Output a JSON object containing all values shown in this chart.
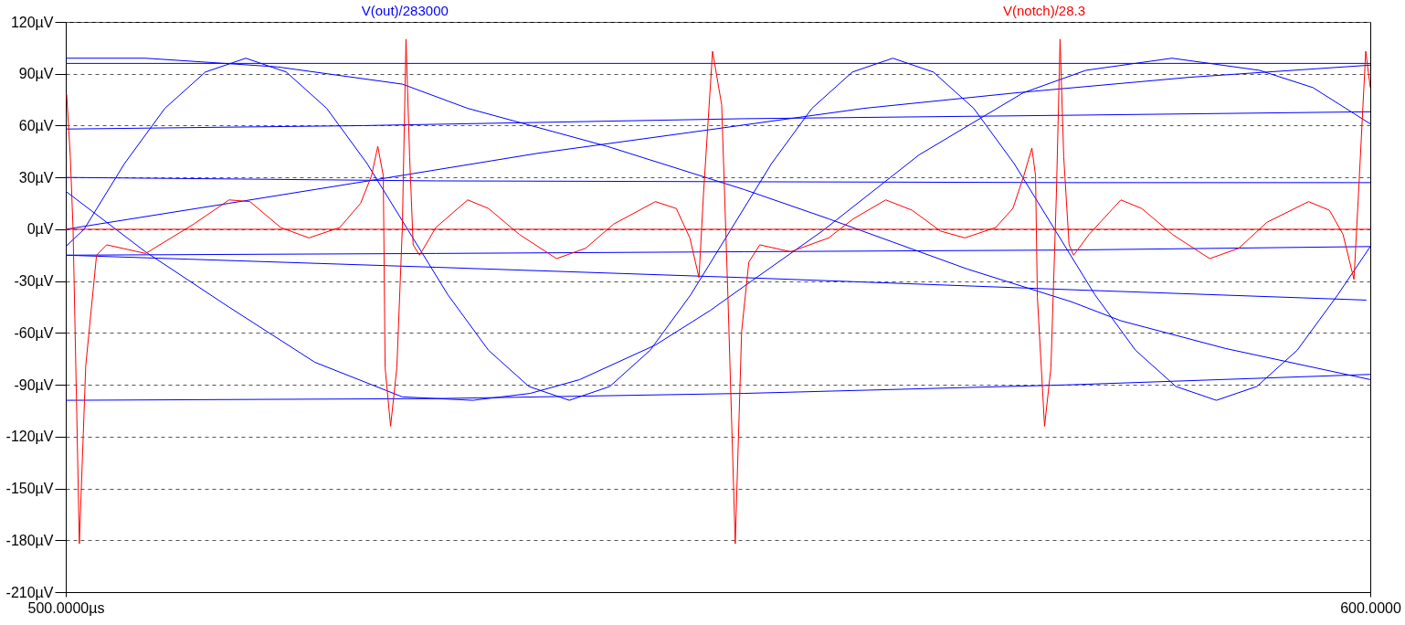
{
  "chart_data": {
    "type": "line",
    "xlim": [
      500,
      600
    ],
    "xticks": [
      {
        "value": 500,
        "label": "500.0000µs"
      },
      {
        "value": 600,
        "label": "600.0000"
      }
    ],
    "ylim": [
      -210,
      120
    ],
    "yticks": [
      {
        "value": -210,
        "label": "-210µV"
      },
      {
        "value": -180,
        "label": "-180µV"
      },
      {
        "value": -150,
        "label": "-150µV"
      },
      {
        "value": -120,
        "label": "-120µV"
      },
      {
        "value": -90,
        "label": "-90µV"
      },
      {
        "value": -60,
        "label": "-60µV"
      },
      {
        "value": -30,
        "label": "-30µV"
      },
      {
        "value": 0,
        "label": "0µV"
      },
      {
        "value": 30,
        "label": "30µV"
      },
      {
        "value": 60,
        "label": "60µV"
      },
      {
        "value": 90,
        "label": "90µV"
      },
      {
        "value": 120,
        "label": "120µV"
      }
    ],
    "grid": "y",
    "legend": "top",
    "line_style": "solid",
    "ref_lines": [
      {
        "axis": "y",
        "value": 0,
        "color": "#ff0000"
      }
    ],
    "series": [
      {
        "name": "V(out)/283000",
        "color": "#0000ff",
        "x": [
          500,
          501.4,
          504.5,
          507.6,
          510.7,
          513.8,
          516.9,
          520,
          523.1,
          526.2,
          529.3,
          532.4,
          535.5,
          538.6,
          541.7,
          544.8,
          547.9,
          551,
          554.1,
          557.2,
          560.3,
          563.4,
          566.5,
          569.6,
          572.7,
          575.8,
          578.9,
          582,
          585.1,
          588.2,
          591.3,
          594.4,
          597.5,
          600
        ],
        "values": [
          -10,
          0,
          38,
          70,
          91,
          99,
          91,
          70,
          38,
          0,
          -38,
          -70,
          -91,
          -99,
          -91,
          -70,
          -38,
          0,
          38,
          70,
          91,
          99,
          91,
          70,
          38,
          0,
          -38,
          -70,
          -91,
          -99,
          -91,
          -70,
          -38,
          -10
        ]
      },
      {
        "color": "#0000ff",
        "x": [
          500,
          506.1,
          512.5,
          519.1,
          525.8,
          531.2,
          535.6,
          539.4,
          545.2,
          549.4,
          552,
          558,
          565.4,
          573.4,
          578.2,
          584.8,
          591.5,
          595.6,
          600
        ],
        "values": [
          22,
          -13,
          -45,
          -77,
          -97,
          -99,
          -95,
          -87,
          -67,
          -47,
          -33,
          -1,
          43,
          79,
          92,
          99,
          92,
          82,
          61
        ]
      },
      {
        "color": "#0000ff",
        "x": [
          500,
          506.1,
          516.2,
          525.8,
          530.8,
          541.5,
          552,
          558.5,
          569.1,
          577.1,
          580.9,
          588.9,
          600
        ],
        "values": [
          99,
          99,
          94,
          84,
          70,
          48,
          23,
          6,
          -23,
          -42,
          -53,
          -69,
          -87
        ]
      },
      {
        "color": "#0000ff",
        "x": [
          500,
          512.5,
          523.2,
          536.2,
          547.8,
          561.2,
          572.9,
          586.2,
          600
        ],
        "values": [
          0,
          15,
          28,
          44,
          56,
          70,
          79,
          88,
          95
        ]
      },
      {
        "color": "#0000ff",
        "x": [
          500,
          600
        ],
        "values": [
          96,
          96
        ]
      },
      {
        "color": "#0000ff",
        "x": [
          500,
          522.8,
          552,
          577.1,
          600
        ],
        "values": [
          58,
          60,
          64,
          66,
          68
        ]
      },
      {
        "color": "#0000ff",
        "x": [
          500,
          528.4,
          577.1,
          600
        ],
        "values": [
          30,
          28,
          27,
          27
        ]
      },
      {
        "color": "#0000ff",
        "x": [
          500,
          528.4,
          552,
          577.1,
          600
        ],
        "values": [
          -15,
          -14,
          -13,
          -12,
          -10
        ]
      },
      {
        "color": "#0000ff",
        "x": [
          500,
          528.4,
          552,
          577.1,
          599.7
        ],
        "values": [
          -15,
          -22,
          -28,
          -35,
          -41
        ]
      },
      {
        "color": "#0000ff",
        "x": [
          500,
          528.4,
          552,
          577.1,
          600
        ],
        "values": [
          -99,
          -98,
          -95,
          -90,
          -84
        ]
      },
      {
        "name": "V(notch)/28.3",
        "color": "#ff0000",
        "x": [
          500.07,
          500.35,
          500.56,
          501.04,
          501.53,
          502.36,
          503.13,
          506.12,
          509.81,
          512.52,
          514.12,
          516.48,
          518.64,
          521,
          522.6,
          523.44,
          523.92,
          524.34,
          524.48,
          524.9,
          525.38,
          525.8,
          526.08,
          526.36,
          526.63,
          527.12,
          528.37,
          530.81,
          532.41,
          534.77,
          537.62,
          539.85,
          542,
          545.2,
          546.8,
          547.84,
          548.54,
          548.89,
          549.58,
          550.28,
          550.76,
          551.32,
          551.81,
          552.36,
          553.2,
          555.56,
          558.48,
          560.36,
          562.86,
          564.88,
          567.04,
          568.92,
          571.28,
          572.6,
          573.44,
          574.06,
          574.34,
          574.48,
          575.03,
          575.52,
          575.94,
          576.22,
          576.5,
          576.91,
          577.26,
          578.44,
          580.88,
          582.48,
          584.84,
          587.69,
          589.92,
          592.07,
          595.27,
          596.87,
          597.91,
          598.75,
          599.1,
          599.65,
          600
        ],
        "values": [
          78,
          42,
          0,
          -182,
          -79,
          -15,
          -9,
          -14,
          3,
          17,
          16,
          1,
          -5,
          1,
          15,
          31,
          48,
          31,
          -80,
          -114,
          -80,
          1,
          110,
          42,
          -9,
          -15,
          1,
          17,
          12,
          -3,
          -17,
          -11,
          3,
          16,
          12,
          -5,
          -28,
          21,
          103,
          72,
          -39,
          -182,
          -59,
          -19,
          -9,
          -13,
          -5,
          6,
          17,
          11,
          -1,
          -5,
          1,
          12,
          31,
          47,
          31,
          -39,
          -114,
          -80,
          21,
          110,
          42,
          -9,
          -15,
          -3,
          17,
          12,
          -3,
          -17,
          -11,
          4,
          16,
          11,
          -3,
          -29,
          21,
          103,
          82
        ]
      }
    ]
  }
}
